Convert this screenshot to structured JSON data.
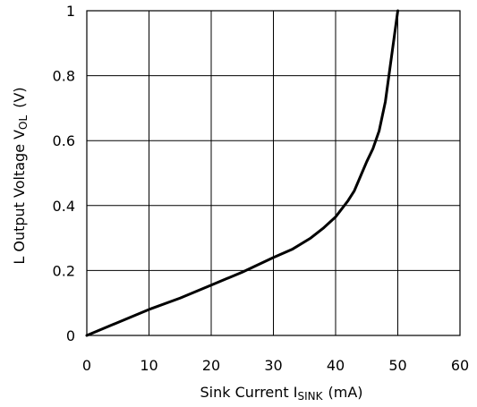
{
  "chart_data": {
    "type": "line",
    "xlabel": {
      "main": "Sink Current I",
      "sub": "SINK",
      "unit": "(mA)"
    },
    "ylabel": {
      "main": "L Output Voltage V",
      "sub": "OL",
      "unit": "(V)"
    },
    "xlim": [
      0,
      60
    ],
    "ylim": [
      0,
      1
    ],
    "xticks": [
      "0",
      "10",
      "20",
      "30",
      "40",
      "50",
      "60"
    ],
    "yticks": [
      "0",
      "0.2",
      "0.4",
      "0.6",
      "0.8",
      "1"
    ],
    "grid": true,
    "series": [
      {
        "x": [
          0,
          5,
          10,
          15,
          20,
          25,
          30,
          33,
          36,
          38,
          40,
          41,
          42,
          43,
          44,
          45,
          46,
          47,
          48,
          49,
          50
        ],
        "y": [
          0,
          0.04,
          0.08,
          0.115,
          0.155,
          0.195,
          0.24,
          0.265,
          0.3,
          0.33,
          0.365,
          0.39,
          0.415,
          0.445,
          0.49,
          0.535,
          0.575,
          0.63,
          0.72,
          0.86,
          1.0
        ]
      }
    ]
  }
}
